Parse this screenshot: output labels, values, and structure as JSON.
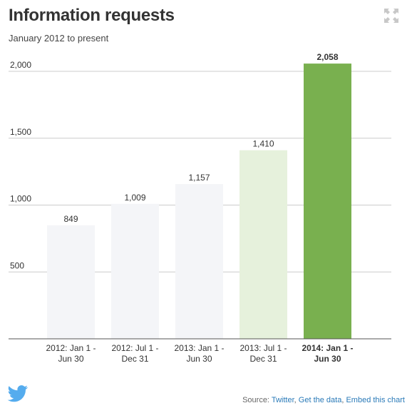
{
  "header": {
    "title": "Information requests",
    "subtitle": "January 2012 to present"
  },
  "footer": {
    "source_prefix": "Source:",
    "source_link": "Twitter",
    "sep1": ",",
    "data_link": "Get the data",
    "sep2": ",",
    "embed_link": "Embed this chart"
  },
  "icons": {
    "expand": "expand-icon",
    "logo": "twitter-bird-icon"
  },
  "colors": {
    "past_bar": "#f4f5f8",
    "prev_bar": "#e6f1dc",
    "current_bar": "#79b04f",
    "gridline": "#cccccc",
    "link": "#2a7ab8",
    "logo": "#55acee"
  },
  "chart_data": {
    "type": "bar",
    "title": "Information requests",
    "subtitle": "January 2012 to present",
    "categories": [
      [
        "2012: Jan 1 -",
        "Jun 30"
      ],
      [
        "2012: Jul 1 -",
        "Dec 31"
      ],
      [
        "2013: Jan 1 -",
        "Jun 30"
      ],
      [
        "2013: Jul 1 -",
        "Dec 31"
      ],
      [
        "2014: Jan 1 -",
        "Jun 30"
      ]
    ],
    "values": [
      849,
      1009,
      1157,
      1410,
      2058
    ],
    "value_labels": [
      "849",
      "1,009",
      "1,157",
      "1,410",
      "2,058"
    ],
    "highlight_index": 4,
    "previous_index": 3,
    "ylim": [
      0,
      2000
    ],
    "yticks": [
      500,
      1000,
      1500,
      2000
    ],
    "ytick_labels": [
      "500",
      "1,000",
      "1,500",
      "2,000"
    ],
    "grid": true,
    "xlabel": "",
    "ylabel": ""
  }
}
